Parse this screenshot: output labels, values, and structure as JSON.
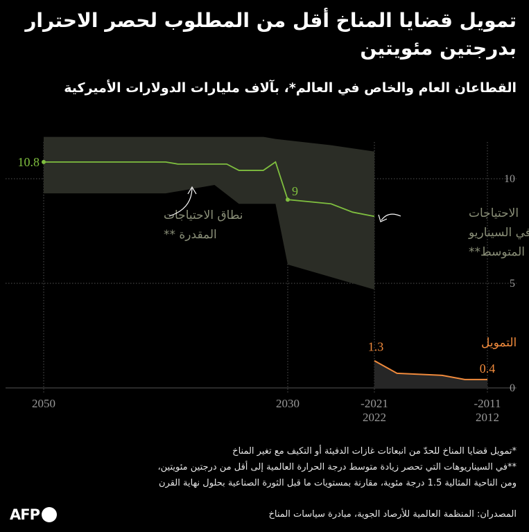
{
  "header": {
    "title": "تمويل قضايا المناخ أقل من المطلوب لحصر الاحترار بدرجتين مئويتين",
    "subtitle": "القطاعان العام والخاص في العالم*، بآلاف مليارات الدولارات الأميركية"
  },
  "colors": {
    "background": "#000000",
    "needs_line": "#7fbf3f",
    "needs_range": "#2b2d26",
    "funding_line": "#f08a3c",
    "funding_area": "#262626",
    "grid": "#555555",
    "axis_text": "#9a9a9a"
  },
  "chart_data": {
    "type": "line",
    "x_direction": "right-to-left",
    "ylim": [
      0,
      11
    ],
    "yticks": [
      0,
      5,
      10
    ],
    "ytick_labels": [
      "0",
      "5",
      "10"
    ],
    "xtick_labels": [
      {
        "year": 2050,
        "label": "2050"
      },
      {
        "year": 2030,
        "label": "2030"
      },
      {
        "year": 2022,
        "label": "-2021\n2022"
      },
      {
        "year": 2012,
        "label": "-2011\n2012"
      }
    ],
    "series": [
      {
        "name": "الاحتياجات في السيناريو المتوسط**",
        "points": [
          [
            2050,
            10.8
          ],
          [
            2040,
            10.8
          ],
          [
            2039,
            10.7
          ],
          [
            2035,
            10.7
          ],
          [
            2034,
            10.4
          ],
          [
            2032,
            10.4
          ],
          [
            2031,
            10.8
          ],
          [
            2030,
            9.0
          ],
          [
            2026,
            8.8
          ],
          [
            2024,
            8.4
          ],
          [
            2022,
            8.2
          ]
        ]
      },
      {
        "name": "التمويل",
        "points": [
          [
            2022,
            1.3
          ],
          [
            2020,
            0.7
          ],
          [
            2016,
            0.6
          ],
          [
            2014,
            0.4
          ],
          [
            2012,
            0.4
          ]
        ]
      }
    ],
    "range": {
      "name": "نطاق الاحتياجات المقدرة **",
      "upper": [
        [
          2050,
          12.0
        ],
        [
          2040,
          12.0
        ],
        [
          2032,
          12.0
        ],
        [
          2031,
          11.9
        ],
        [
          2026,
          11.6
        ],
        [
          2022,
          11.3
        ]
      ],
      "lower": [
        [
          2050,
          9.3
        ],
        [
          2040,
          9.3
        ],
        [
          2036,
          9.7
        ],
        [
          2034,
          8.8
        ],
        [
          2031,
          8.8
        ],
        [
          2030,
          5.9
        ],
        [
          2022,
          4.7
        ]
      ]
    },
    "data_labels": [
      {
        "key": "start",
        "text": "10.8"
      },
      {
        "key": "mid",
        "text": "9"
      },
      {
        "key": "fund_start",
        "text": "1.3"
      },
      {
        "key": "fund_end",
        "text": "0.4"
      }
    ],
    "annotations": {
      "range_label": "نطاق الاحتياجات المقدرة **",
      "needs_label": "الاحتياجات في السيناريو المتوسط**",
      "funding_label": "التمويل"
    }
  },
  "footer": {
    "note1": "*تمويل قضايا المناخ للحدّ من انبعاثات غازات الدفيئة أو التكيف مع تغير المناخ",
    "note2": "**في السيناريوهات التي تحصر زيادة متوسط درجة الحرارة العالمية إلى أقل من درجتين مئويتين،",
    "note3": "ومن الناحية المثالية 1.5 درجة مئوية، مقارنة بمستويات ما قبل الثورة الصناعية بحلول نهاية القرن",
    "sources": "المصدران: المنظمة العالمية للأرصاد الجوية، مبادرة سياسات المناخ",
    "logo": "AFP"
  }
}
